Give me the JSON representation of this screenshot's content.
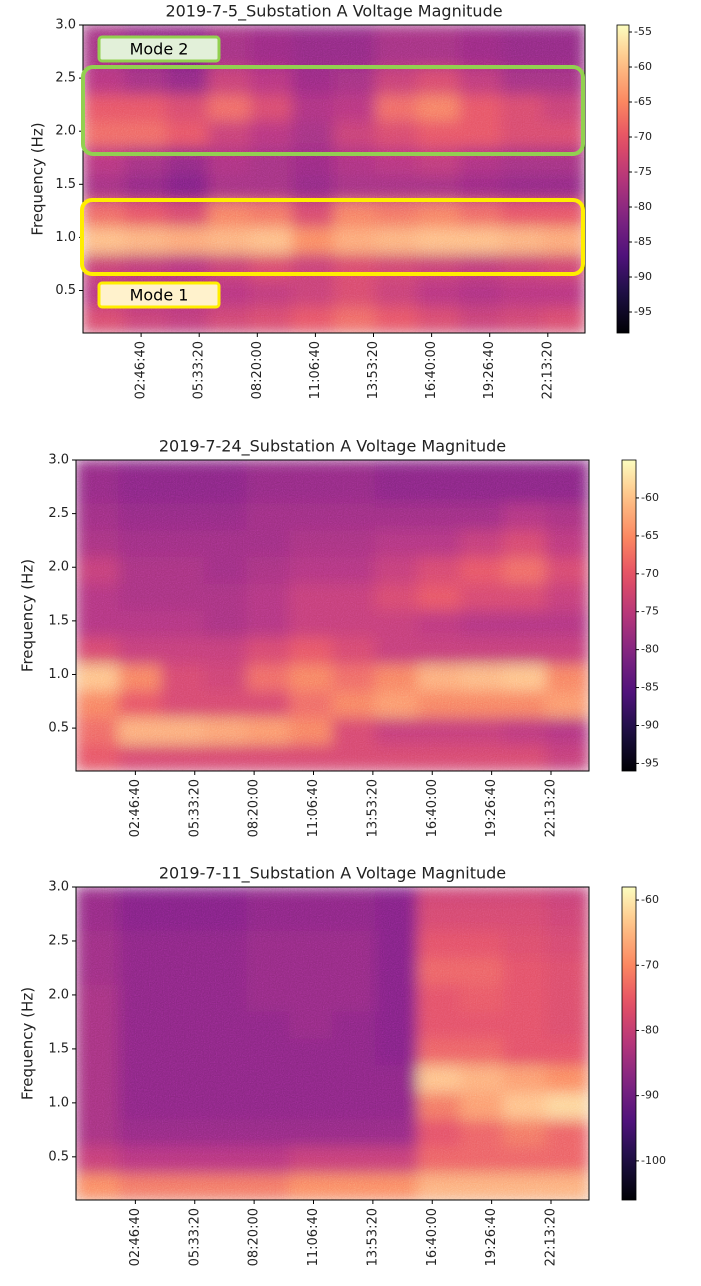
{
  "chart_data": [
    {
      "type": "heatmap",
      "title": "2019-7-5_Substation A Voltage Magnitude",
      "ylabel": "Frequency (Hz)",
      "colormap": "magma",
      "xlim": [
        0,
        86400
      ],
      "ylim": [
        0.1,
        3.0
      ],
      "xticks": [
        {
          "value": 10000,
          "label": "02:46:40"
        },
        {
          "value": 20000,
          "label": "05:33:20"
        },
        {
          "value": 30000,
          "label": "08:20:00"
        },
        {
          "value": 40000,
          "label": "11:06:40"
        },
        {
          "value": 50000,
          "label": "13:53:20"
        },
        {
          "value": 60000,
          "label": "16:40:00"
        },
        {
          "value": 70000,
          "label": "19:26:40"
        },
        {
          "value": 80000,
          "label": "22:13:20"
        }
      ],
      "yticks": [
        0.5,
        {
          "value": 1,
          "label": "1.0"
        },
        1.5,
        {
          "value": 2,
          "label": "2.0"
        },
        2.5,
        {
          "value": 3,
          "label": "3.0"
        }
      ],
      "clim": [
        -98,
        -54
      ],
      "cticks": [
        -95,
        -90,
        -85,
        -80,
        -75,
        -70,
        -65,
        -60,
        -55
      ],
      "x_bins": [
        0,
        7200,
        14400,
        21600,
        28800,
        36000,
        43200,
        50400,
        57600,
        64800,
        72000,
        79200,
        86400
      ],
      "y_bins": [
        0.1,
        0.35,
        0.6,
        0.85,
        1.1,
        1.35,
        1.6,
        1.85,
        2.1,
        2.35,
        2.6,
        2.85,
        3.0
      ],
      "z": [
        [
          -72,
          -74,
          -75,
          -73,
          -72,
          -70,
          -68,
          -70,
          -72,
          -74,
          -73,
          -72
        ],
        [
          -76,
          -77,
          -77,
          -76,
          -75,
          -74,
          -72,
          -74,
          -76,
          -77,
          -76,
          -76
        ],
        [
          -74,
          -75,
          -76,
          -74,
          -72,
          -74,
          -72,
          -73,
          -74,
          -75,
          -74,
          -73
        ],
        [
          -60,
          -61,
          -62,
          -61,
          -60,
          -65,
          -62,
          -61,
          -60,
          -60,
          -61,
          -62
        ],
        [
          -68,
          -70,
          -72,
          -66,
          -67,
          -72,
          -66,
          -67,
          -66,
          -68,
          -70,
          -70
        ],
        [
          -78,
          -80,
          -82,
          -78,
          -78,
          -80,
          -78,
          -78,
          -78,
          -79,
          -80,
          -80
        ],
        [
          -76,
          -78,
          -80,
          -77,
          -78,
          -79,
          -77,
          -76,
          -75,
          -77,
          -78,
          -78
        ],
        [
          -68,
          -68,
          -70,
          -74,
          -76,
          -78,
          -74,
          -72,
          -70,
          -70,
          -72,
          -72
        ],
        [
          -70,
          -70,
          -72,
          -68,
          -72,
          -77,
          -76,
          -68,
          -66,
          -70,
          -72,
          -74
        ],
        [
          -76,
          -78,
          -80,
          -74,
          -76,
          -79,
          -78,
          -74,
          -72,
          -75,
          -78,
          -78
        ],
        [
          -78,
          -80,
          -82,
          -78,
          -79,
          -80,
          -80,
          -78,
          -78,
          -79,
          -80,
          -80
        ],
        [
          -78,
          -80,
          -80,
          -78,
          -79,
          -80,
          -80,
          -78,
          -78,
          -79,
          -80,
          -80
        ]
      ],
      "annotations": [
        {
          "text": "Mode 2",
          "color": "#92d050"
        },
        {
          "text": "Mode 1",
          "color": "#ffee00"
        }
      ]
    },
    {
      "type": "heatmap",
      "title": "2019-7-24_Substation A Voltage Magnitude",
      "ylabel": "Frequency (Hz)",
      "colormap": "magma",
      "xlim": [
        0,
        86400
      ],
      "ylim": [
        0.1,
        3.0
      ],
      "xticks": [
        {
          "value": 10000,
          "label": "02:46:40"
        },
        {
          "value": 20000,
          "label": "05:33:20"
        },
        {
          "value": 30000,
          "label": "08:20:00"
        },
        {
          "value": 40000,
          "label": "11:06:40"
        },
        {
          "value": 50000,
          "label": "13:53:20"
        },
        {
          "value": 60000,
          "label": "16:40:00"
        },
        {
          "value": 70000,
          "label": "19:26:40"
        },
        {
          "value": 80000,
          "label": "22:13:20"
        }
      ],
      "yticks": [
        0.5,
        {
          "value": 1,
          "label": "1.0"
        },
        1.5,
        {
          "value": 2,
          "label": "2.0"
        },
        2.5,
        {
          "value": 3,
          "label": "3.0"
        }
      ],
      "clim": [
        -96,
        -55
      ],
      "cticks": [
        -95,
        -90,
        -85,
        -80,
        -75,
        -70,
        -65,
        -60
      ],
      "x_bins": [
        0,
        7200,
        14400,
        21600,
        28800,
        36000,
        43200,
        50400,
        57600,
        64800,
        72000,
        79200,
        86400
      ],
      "y_bins": [
        0.1,
        0.35,
        0.6,
        0.85,
        1.1,
        1.35,
        1.6,
        1.85,
        2.1,
        2.35,
        2.6,
        2.85,
        3.0
      ],
      "z": [
        [
          -70,
          -72,
          -72,
          -72,
          -72,
          -72,
          -72,
          -72,
          -72,
          -72,
          -72,
          -74
        ],
        [
          -68,
          -62,
          -62,
          -63,
          -64,
          -66,
          -72,
          -74,
          -74,
          -74,
          -75,
          -76
        ],
        [
          -66,
          -70,
          -72,
          -72,
          -72,
          -68,
          -66,
          -64,
          -66,
          -66,
          -66,
          -64
        ],
        [
          -60,
          -66,
          -72,
          -73,
          -68,
          -66,
          -68,
          -66,
          -62,
          -61,
          -60,
          -66
        ],
        [
          -72,
          -74,
          -74,
          -74,
          -72,
          -70,
          -72,
          -74,
          -74,
          -74,
          -74,
          -74
        ],
        [
          -76,
          -76,
          -76,
          -77,
          -76,
          -74,
          -74,
          -74,
          -75,
          -76,
          -76,
          -76
        ],
        [
          -76,
          -77,
          -77,
          -77,
          -76,
          -74,
          -74,
          -72,
          -70,
          -72,
          -72,
          -74
        ],
        [
          -74,
          -77,
          -77,
          -78,
          -77,
          -76,
          -76,
          -74,
          -72,
          -70,
          -68,
          -72
        ],
        [
          -77,
          -78,
          -78,
          -78,
          -78,
          -77,
          -77,
          -76,
          -76,
          -74,
          -72,
          -75
        ],
        [
          -78,
          -79,
          -79,
          -79,
          -78,
          -78,
          -78,
          -78,
          -78,
          -78,
          -76,
          -77
        ],
        [
          -79,
          -80,
          -80,
          -80,
          -79,
          -79,
          -79,
          -80,
          -80,
          -80,
          -80,
          -80
        ],
        [
          -79,
          -80,
          -80,
          -80,
          -79,
          -79,
          -79,
          -80,
          -80,
          -80,
          -80,
          -80
        ]
      ]
    },
    {
      "type": "heatmap",
      "title": "2019-7-11_Substation A Voltage Magnitude",
      "ylabel": "Frequency (Hz)",
      "colormap": "magma",
      "xlim": [
        0,
        86400
      ],
      "ylim": [
        0.1,
        3.0
      ],
      "xticks": [
        {
          "value": 10000,
          "label": "02:46:40"
        },
        {
          "value": 20000,
          "label": "05:33:20"
        },
        {
          "value": 30000,
          "label": "08:20:00"
        },
        {
          "value": 40000,
          "label": "11:06:40"
        },
        {
          "value": 50000,
          "label": "13:53:20"
        },
        {
          "value": 60000,
          "label": "16:40:00"
        },
        {
          "value": 70000,
          "label": "19:26:40"
        },
        {
          "value": 80000,
          "label": "22:13:20"
        }
      ],
      "yticks": [
        0.5,
        {
          "value": 1,
          "label": "1.0"
        },
        1.5,
        {
          "value": 2,
          "label": "2.0"
        },
        2.5,
        {
          "value": 3,
          "label": "3.0"
        }
      ],
      "clim": [
        -106,
        -58
      ],
      "cticks": [
        -100,
        -90,
        -80,
        -70,
        -60
      ],
      "x_bins": [
        0,
        7200,
        14400,
        21600,
        28800,
        36000,
        43200,
        50400,
        57600,
        64800,
        72000,
        79200,
        86400
      ],
      "y_bins": [
        0.1,
        0.35,
        0.6,
        0.85,
        1.1,
        1.35,
        1.6,
        1.85,
        2.1,
        2.35,
        2.6,
        2.85,
        3.0
      ],
      "z": [
        [
          -70,
          -72,
          -72,
          -72,
          -72,
          -70,
          -70,
          -70,
          -66,
          -66,
          -66,
          -66
        ],
        [
          -80,
          -82,
          -82,
          -82,
          -82,
          -80,
          -80,
          -80,
          -74,
          -74,
          -74,
          -74
        ],
        [
          -84,
          -86,
          -86,
          -86,
          -86,
          -86,
          -86,
          -86,
          -76,
          -74,
          -72,
          -74
        ],
        [
          -84,
          -87,
          -87,
          -87,
          -87,
          -87,
          -87,
          -87,
          -72,
          -68,
          -64,
          -62
        ],
        [
          -84,
          -87,
          -87,
          -87,
          -87,
          -87,
          -87,
          -87,
          -64,
          -66,
          -68,
          -70
        ],
        [
          -84,
          -87,
          -87,
          -87,
          -87,
          -87,
          -87,
          -88,
          -74,
          -74,
          -76,
          -76
        ],
        [
          -84,
          -87,
          -87,
          -87,
          -87,
          -86,
          -87,
          -88,
          -76,
          -76,
          -76,
          -77
        ],
        [
          -84,
          -87,
          -87,
          -87,
          -86,
          -86,
          -86,
          -88,
          -76,
          -75,
          -76,
          -77
        ],
        [
          -85,
          -87,
          -87,
          -87,
          -86,
          -86,
          -86,
          -88,
          -74,
          -74,
          -76,
          -77
        ],
        [
          -85,
          -87,
          -87,
          -87,
          -86,
          -86,
          -86,
          -88,
          -76,
          -76,
          -77,
          -78
        ],
        [
          -86,
          -88,
          -88,
          -88,
          -87,
          -87,
          -87,
          -88,
          -78,
          -78,
          -78,
          -79
        ],
        [
          -86,
          -88,
          -88,
          -88,
          -87,
          -87,
          -87,
          -88,
          -79,
          -79,
          -79,
          -80
        ]
      ]
    }
  ]
}
